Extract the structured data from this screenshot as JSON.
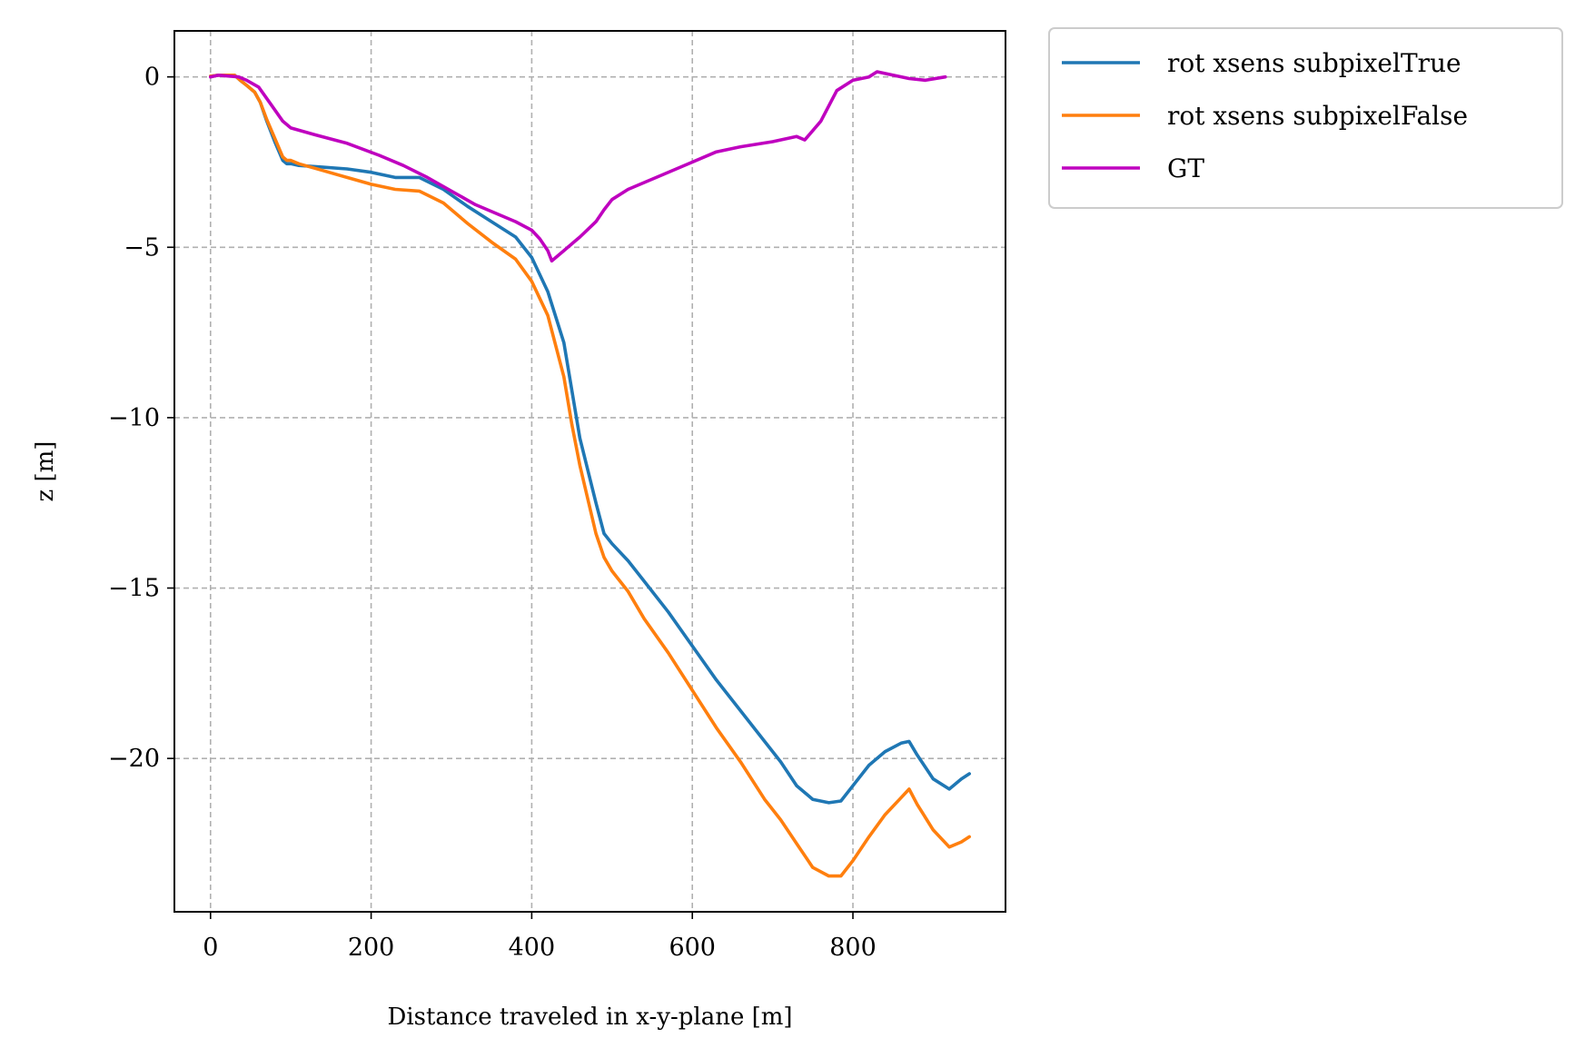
{
  "chart_data": {
    "type": "line",
    "title": "",
    "xlabel": "Distance traveled in x-y-plane [m]",
    "ylabel": "z [m]",
    "xlim": [
      -45,
      990
    ],
    "ylim": [
      -24.5,
      1.35
    ],
    "xticks": [
      0,
      200,
      400,
      600,
      800
    ],
    "xtick_labels": [
      "0",
      "200",
      "400",
      "600",
      "800"
    ],
    "yticks": [
      0,
      -5,
      -10,
      -15,
      -20
    ],
    "ytick_labels": [
      "0",
      "−5",
      "−10",
      "−15",
      "−20"
    ],
    "grid": true,
    "legend_position": "outside-top-right",
    "series": [
      {
        "name": "rot xsens subpixelTrue",
        "color": "#1f77b4",
        "x": [
          0,
          10,
          30,
          37,
          45,
          55,
          62,
          70,
          80,
          90,
          95,
          100,
          110,
          140,
          170,
          200,
          230,
          260,
          290,
          320,
          350,
          380,
          400,
          420,
          440,
          450,
          460,
          480,
          490,
          500,
          520,
          540,
          570,
          600,
          630,
          660,
          690,
          710,
          730,
          750,
          770,
          785,
          800,
          820,
          840,
          860,
          870,
          880,
          900,
          920,
          935,
          945
        ],
        "y": [
          0.02,
          0.05,
          0.05,
          -0.1,
          -0.25,
          -0.45,
          -0.75,
          -1.3,
          -1.9,
          -2.45,
          -2.55,
          -2.55,
          -2.6,
          -2.65,
          -2.7,
          -2.8,
          -2.95,
          -2.95,
          -3.3,
          -3.8,
          -4.25,
          -4.7,
          -5.3,
          -6.3,
          -7.8,
          -9.2,
          -10.6,
          -12.5,
          -13.4,
          -13.7,
          -14.2,
          -14.8,
          -15.7,
          -16.7,
          -17.7,
          -18.6,
          -19.5,
          -20.1,
          -20.8,
          -21.2,
          -21.3,
          -21.25,
          -20.8,
          -20.2,
          -19.8,
          -19.55,
          -19.5,
          -19.9,
          -20.6,
          -20.9,
          -20.6,
          -20.45
        ]
      },
      {
        "name": "rot xsens subpixelFalse",
        "color": "#ff7f0e",
        "x": [
          0,
          10,
          30,
          37,
          45,
          55,
          62,
          70,
          80,
          90,
          95,
          100,
          110,
          140,
          170,
          200,
          230,
          260,
          290,
          320,
          350,
          380,
          400,
          420,
          440,
          450,
          460,
          480,
          490,
          500,
          520,
          540,
          570,
          600,
          630,
          660,
          690,
          710,
          730,
          750,
          770,
          785,
          800,
          820,
          840,
          860,
          870,
          880,
          900,
          920,
          935,
          945
        ],
        "y": [
          0.02,
          0.05,
          0.05,
          -0.1,
          -0.25,
          -0.45,
          -0.75,
          -1.25,
          -1.8,
          -2.35,
          -2.45,
          -2.45,
          -2.55,
          -2.75,
          -2.95,
          -3.15,
          -3.3,
          -3.35,
          -3.7,
          -4.3,
          -4.85,
          -5.35,
          -6.0,
          -7.0,
          -8.8,
          -10.2,
          -11.4,
          -13.4,
          -14.1,
          -14.5,
          -15.1,
          -15.9,
          -16.9,
          -18.0,
          -19.1,
          -20.1,
          -21.2,
          -21.8,
          -22.5,
          -23.2,
          -23.45,
          -23.45,
          -23.0,
          -22.3,
          -21.65,
          -21.15,
          -20.9,
          -21.35,
          -22.1,
          -22.6,
          -22.45,
          -22.3
        ]
      },
      {
        "name": "GT",
        "color": "#bf00bf",
        "x": [
          0,
          10,
          35,
          45,
          60,
          75,
          90,
          100,
          130,
          170,
          210,
          240,
          270,
          300,
          330,
          360,
          380,
          400,
          410,
          420,
          425,
          440,
          460,
          480,
          490,
          500,
          520,
          560,
          600,
          630,
          660,
          700,
          730,
          740,
          760,
          780,
          800,
          820,
          830,
          850,
          870,
          890,
          915
        ],
        "y": [
          0.0,
          0.05,
          0.0,
          -0.1,
          -0.3,
          -0.8,
          -1.3,
          -1.5,
          -1.7,
          -1.95,
          -2.3,
          -2.6,
          -2.95,
          -3.35,
          -3.75,
          -4.05,
          -4.25,
          -4.5,
          -4.75,
          -5.1,
          -5.4,
          -5.1,
          -4.7,
          -4.25,
          -3.9,
          -3.6,
          -3.3,
          -2.9,
          -2.5,
          -2.2,
          -2.05,
          -1.9,
          -1.75,
          -1.85,
          -1.3,
          -0.4,
          -0.1,
          0.0,
          0.15,
          0.05,
          -0.05,
          -0.1,
          0.0
        ]
      }
    ]
  }
}
